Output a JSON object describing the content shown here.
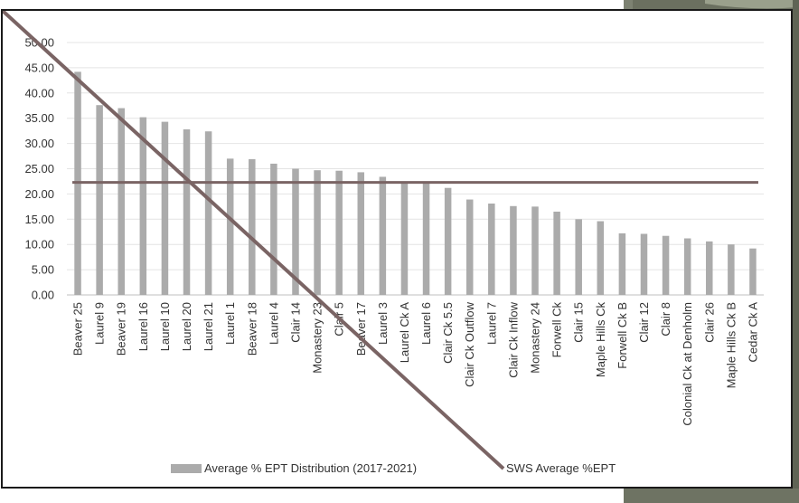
{
  "chart_data": {
    "type": "bar",
    "title": "",
    "xlabel": "",
    "ylabel": "",
    "ylim": [
      0,
      50
    ],
    "y_ticks": [
      "0.00",
      "5.00",
      "10.00",
      "15.00",
      "20.00",
      "25.00",
      "30.00",
      "35.00",
      "40.00",
      "45.00",
      "50.00"
    ],
    "grid": true,
    "legend_position": "bottom",
    "categories": [
      "Beaver 25",
      "Laurel 9",
      "Beaver 19",
      "Laurel 16",
      "Laurel 10",
      "Laurel 20",
      "Laurel 21",
      "Laurel 1",
      "Beaver 18",
      "Laurel 4",
      "Clair 14",
      "Monastery 23",
      "Clair 5",
      "Beaver 17",
      "Laurel 3",
      "Laurel Ck A",
      "Laurel 6",
      "Clair Ck 5.5",
      "Clair Ck Outflow",
      "Laurel 7",
      "Clair Ck Inflow",
      "Monastery 24",
      "Forwell Ck",
      "Clair 15",
      "Maple Hills Ck",
      "Forwell Ck B",
      "Clair 12",
      "Clair 8",
      "Colonial Ck at Denholm",
      "Clair 26",
      "Maple Hills Ck B",
      "Cedar Ck A"
    ],
    "series": [
      {
        "name": "Average % EPT Distribution (2017-2021)",
        "type": "bar",
        "color": "#ababab",
        "values": [
          44.2,
          37.6,
          37.0,
          35.2,
          34.3,
          32.8,
          32.4,
          27.0,
          26.9,
          26.0,
          25.0,
          24.7,
          24.6,
          24.3,
          23.4,
          22.4,
          22.3,
          21.2,
          18.9,
          18.1,
          17.6,
          17.5,
          16.5,
          15.0,
          14.6,
          12.2,
          12.1,
          11.7,
          11.2,
          10.6,
          10.0,
          9.2
        ]
      },
      {
        "name": "SWS Average %EPT",
        "type": "line",
        "color": "#7a6464",
        "value": 22.3
      }
    ]
  }
}
